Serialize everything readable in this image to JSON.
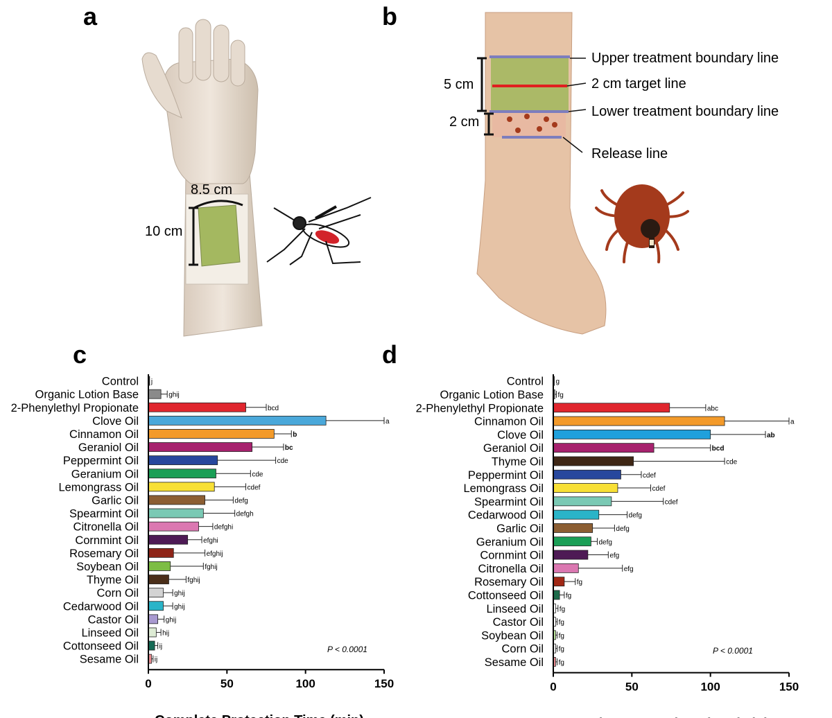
{
  "panels": {
    "a": "a",
    "b": "b",
    "c": "c",
    "d": "d"
  },
  "panel_a": {
    "width_label": "8.5 cm",
    "height_label": "10 cm"
  },
  "panel_b": {
    "dim_upper": "5 cm",
    "dim_lower": "2 cm",
    "upper_boundary": "Upper treatment boundary line",
    "target_line": "2 cm target line",
    "lower_boundary": "Lower treatment boundary line",
    "release_line": "Release line"
  },
  "colors": {
    "treatment_area": "#a4b860",
    "boundary": "#7d7dbd",
    "target": "#e02020",
    "tick": "#a43a1c"
  },
  "chart_data": [
    {
      "type": "bar",
      "orientation": "horizontal",
      "xlabel": "Complete Protection Time (min)",
      "xlim": [
        0,
        150
      ],
      "xticks": [
        0,
        50,
        100,
        150
      ],
      "annotation": "P < 0.0001",
      "categories": [
        "Control",
        "Organic Lotion Base",
        "2-Phenylethyl Propionate",
        "Clove Oil",
        "Cinnamon Oil",
        "Geraniol Oil",
        "Peppermint Oil",
        "Geranium Oil",
        "Lemongrass Oil",
        "Garlic Oil",
        "Spearmint Oil",
        "Citronella Oil",
        "Cornmint Oil",
        "Rosemary Oil",
        "Soybean Oil",
        "Thyme Oil",
        "Corn Oil",
        "Cedarwood Oil",
        "Castor Oil",
        "Linseed Oil",
        "Cottonseed Oil",
        "Sesame Oil"
      ],
      "values": [
        0.8,
        8,
        62,
        113,
        80,
        66,
        44,
        43,
        42,
        36,
        35,
        32,
        25,
        16,
        14,
        13,
        9.5,
        9.5,
        6,
        5,
        4,
        2
      ],
      "errors": [
        0,
        4,
        13,
        37,
        11,
        20,
        37,
        22,
        20,
        18,
        20,
        9,
        9,
        20,
        21,
        11,
        6,
        6,
        4,
        3,
        2,
        1
      ],
      "letters": [
        "j",
        "ghij",
        "bcd",
        "a",
        "b",
        "bc",
        "cde",
        "cde",
        "cdef",
        "defg",
        "defgh",
        "defghi",
        "efghi",
        "efghij",
        "fghij",
        "fghij",
        "ghij",
        "ghij",
        "ghij",
        "hij",
        "ij",
        "ij"
      ],
      "bold_letters": [
        "b",
        "bc"
      ],
      "colors": [
        "#111111",
        "#8a8a8a",
        "#e0262e",
        "#4aa8da",
        "#f39a2a",
        "#a7226e",
        "#27479d",
        "#1a9f56",
        "#f8e036",
        "#8c5e33",
        "#7ac9b4",
        "#db78b1",
        "#4e1a55",
        "#8e2417",
        "#7dbd44",
        "#4a2e19",
        "#d3d3d3",
        "#2ab4c8",
        "#a99ad0",
        "#ddebd4",
        "#146a55",
        "#e88a8f"
      ]
    },
    {
      "type": "bar",
      "orientation": "horizontal",
      "xlabel": "Complete Protection Time (min)",
      "xlim": [
        0,
        150
      ],
      "xticks": [
        0,
        50,
        100,
        150
      ],
      "annotation": "P < 0.0001",
      "categories": [
        "Control",
        "Organic Lotion Base",
        "2-Phenylethyl Propionate",
        "Cinnamon Oil",
        "Clove Oil",
        "Geraniol Oil",
        "Thyme Oil",
        "Peppermint Oil",
        "Lemongrass Oil",
        "Spearmint Oil",
        "Cedarwood Oil",
        "Garlic Oil",
        "Geranium Oil",
        "Cornmint Oil",
        "Citronella Oil",
        "Rosemary Oil",
        "Cottonseed Oil",
        "Linseed Oil",
        "Castor Oil",
        "Soybean Oil",
        "Corn Oil",
        "Sesame Oil"
      ],
      "values": [
        0.5,
        1,
        74,
        109,
        100,
        64,
        51,
        43,
        41,
        37,
        29,
        25,
        24,
        22,
        16,
        7,
        4,
        1.5,
        1.5,
        1.5,
        1.5,
        1.5
      ],
      "errors": [
        0,
        1,
        23,
        41,
        35,
        36,
        58,
        13,
        21,
        33,
        18,
        14,
        4,
        13,
        28,
        7,
        3,
        1.5,
        1,
        1,
        1,
        1
      ],
      "letters": [
        "g",
        "fg",
        "abc",
        "a",
        "ab",
        "bcd",
        "cde",
        "cdef",
        "cdef",
        "cdef",
        "defg",
        "defg",
        "defg",
        "efg",
        "efg",
        "fg",
        "fg",
        "fg",
        "fg",
        "fg",
        "fg",
        "fg"
      ],
      "bold_letters": [
        "ab",
        "bcd"
      ],
      "colors": [
        "#111111",
        "#8a8a8a",
        "#e0262e",
        "#f39a2a",
        "#1fa0dc",
        "#a7226e",
        "#3f2715",
        "#27479d",
        "#f8e036",
        "#7ac9b4",
        "#2ab4c8",
        "#8c5e33",
        "#1a9f56",
        "#4e1a55",
        "#db78b1",
        "#a12815",
        "#1d6b4a",
        "#ffffff",
        "#ffffff",
        "#bde59d",
        "#eeeeee",
        "#e88a8f"
      ]
    }
  ]
}
